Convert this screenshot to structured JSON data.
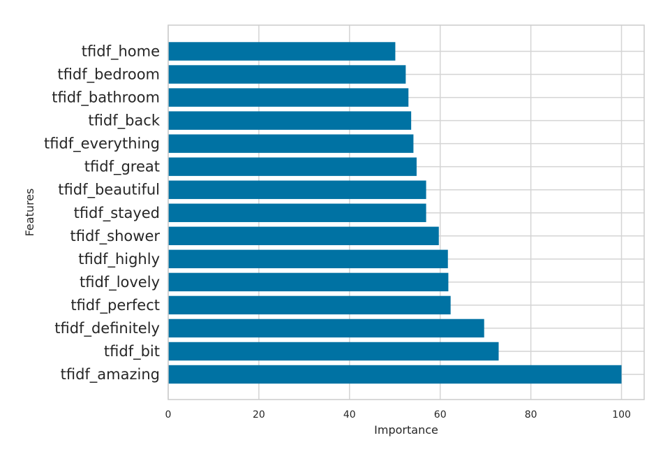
{
  "chart_data": {
    "type": "bar",
    "orientation": "horizontal",
    "title": "",
    "xlabel": "Importance",
    "ylabel": "Features",
    "xlim": [
      0,
      105
    ],
    "xticks": [
      0,
      20,
      40,
      60,
      80,
      100
    ],
    "xtick_labels": [
      "0",
      "20",
      "40",
      "60",
      "80",
      "100"
    ],
    "grid": true,
    "bar_color": "#0072a3",
    "categories": [
      "tfidf_home",
      "tfidf_bedroom",
      "tfidf_bathroom",
      "tfidf_back",
      "tfidf_everything",
      "tfidf_great",
      "tfidf_beautiful",
      "tfidf_stayed",
      "tfidf_shower",
      "tfidf_highly",
      "tfidf_lovely",
      "tfidf_perfect",
      "tfidf_definitely",
      "tfidf_bit",
      "tfidf_amazing"
    ],
    "values": [
      50.1,
      52.4,
      53.0,
      53.6,
      54.1,
      54.8,
      56.9,
      56.9,
      59.7,
      61.7,
      61.8,
      62.3,
      69.7,
      72.9,
      100.0
    ]
  }
}
